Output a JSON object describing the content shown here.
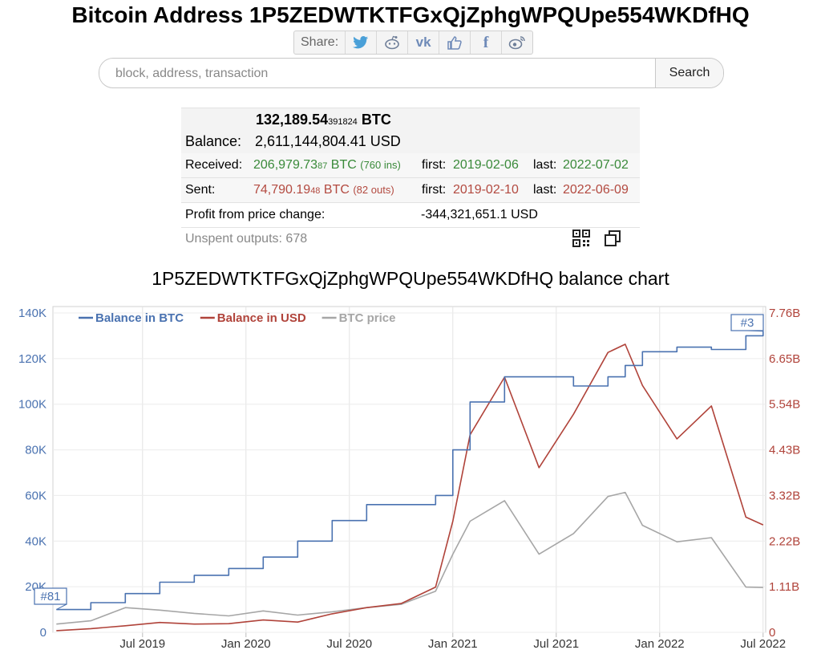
{
  "page": {
    "title": "Bitcoin Address 1P5ZEDWTKTFGxQjZphgWPQUpe554WKDfHQ"
  },
  "share": {
    "label": "Share:",
    "icons": [
      "twitter-icon",
      "reddit-icon",
      "vk-icon",
      "like-icon",
      "facebook-icon",
      "weibo-icon"
    ]
  },
  "search": {
    "placeholder": "block, address, transaction",
    "button_label": "Search"
  },
  "summary": {
    "btc_main": "132,189.54",
    "btc_fraction": "391824",
    "btc_unit": "BTC",
    "balance_label": "Balance:",
    "balance_usd": "2,611,144,804.41 USD",
    "received_label": "Received:",
    "received_main": "206,979.73",
    "received_fraction": "87",
    "received_unit": "BTC",
    "received_count": "(760 ins)",
    "received_first_label": "first:",
    "received_first": "2019-02-06",
    "received_last_label": "last:",
    "received_last": "2022-07-02",
    "sent_label": "Sent:",
    "sent_main": "74,790.19",
    "sent_fraction": "48",
    "sent_unit": "BTC",
    "sent_count": "(82 outs)",
    "sent_first_label": "first:",
    "sent_first": "2019-02-10",
    "sent_last_label": "last:",
    "sent_last": "2022-06-09",
    "profit_label": "Profit from price change:",
    "profit_value": "-344,321,651.1 USD",
    "unspent_label": "Unspent outputs: 678"
  },
  "colors": {
    "btc": "#4a72b0",
    "usd": "#b0433a",
    "price": "#a6a6a6",
    "green": "#3a8a3a",
    "red": "#b34a40"
  },
  "chart_data": {
    "type": "line",
    "title": "1P5ZEDWTKTFGxQjZphgWPQUpe554WKDfHQ balance chart",
    "x_ticks": [
      "Jul 2019",
      "Jan 2020",
      "Jul 2020",
      "Jan 2021",
      "Jul 2021",
      "Jan 2022",
      "Jul 2022"
    ],
    "y_left_ticks": [
      "0",
      "20K",
      "40K",
      "60K",
      "80K",
      "100K",
      "120K",
      "140K"
    ],
    "y_right_ticks": [
      "0",
      "1.11B",
      "2.22B",
      "3.32B",
      "4.43B",
      "5.54B",
      "6.65B",
      "7.76B"
    ],
    "y_left_range": [
      0,
      140000
    ],
    "y_right_range": [
      0,
      7760000000
    ],
    "x_range": [
      "2019-02",
      "2022-07"
    ],
    "legend": [
      "Balance in BTC",
      "Balance in USD",
      "BTC price"
    ],
    "legend_position": "top-left",
    "grid": true,
    "flags": [
      {
        "label": "#81",
        "x": "2019-02",
        "series": "Balance in BTC"
      },
      {
        "label": "#3",
        "x": "2022-07",
        "series": "Balance in BTC"
      }
    ],
    "x": [
      "2019-02",
      "2019-04",
      "2019-06",
      "2019-08",
      "2019-10",
      "2019-12",
      "2020-02",
      "2020-04",
      "2020-06",
      "2020-08",
      "2020-10",
      "2020-12",
      "2021-01",
      "2021-02",
      "2021-04",
      "2021-06",
      "2021-08",
      "2021-10",
      "2021-11",
      "2021-12",
      "2022-02",
      "2022-04",
      "2022-06",
      "2022-07"
    ],
    "series": [
      {
        "name": "Balance in BTC",
        "axis": "left",
        "values": [
          10000,
          13000,
          17000,
          22000,
          25000,
          28000,
          33000,
          40000,
          49000,
          56000,
          56000,
          60000,
          80000,
          101000,
          112000,
          112000,
          108000,
          112000,
          117000,
          123000,
          125000,
          124000,
          130000,
          132000
        ]
      },
      {
        "name": "Balance in USD",
        "axis": "right",
        "values": [
          40000000,
          90000000,
          160000000,
          240000000,
          200000000,
          210000000,
          300000000,
          250000000,
          450000000,
          600000000,
          700000000,
          1100000000,
          2700000000,
          4800000000,
          6200000000,
          4000000000,
          5300000000,
          6800000000,
          7000000000,
          6000000000,
          4700000000,
          5500000000,
          2800000000,
          2611000000
        ]
      },
      {
        "name": "BTC price",
        "axis": "right",
        "values": [
          200000000,
          280000000,
          600000000,
          540000000,
          460000000,
          400000000,
          520000000,
          420000000,
          500000000,
          600000000,
          680000000,
          1000000000,
          1900000000,
          2700000000,
          3200000000,
          1900000000,
          2400000000,
          3300000000,
          3400000000,
          2600000000,
          2200000000,
          2300000000,
          1100000000,
          1090000000
        ]
      }
    ]
  }
}
